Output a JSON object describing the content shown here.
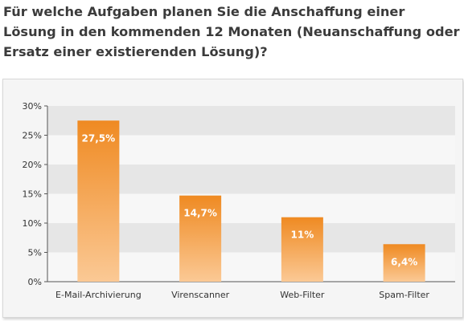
{
  "title": "Für welche Aufgaben planen Sie die Anschaffung einer Lösung in den kommenden 12 Monaten (Neuanschaffung oder Ersatz einer existierenden Lösung)?",
  "colors": {
    "bar_top": "#ef8a22",
    "bar_bottom": "#fbc995",
    "band": "#e6e6e6",
    "plot_bg": "#f7f7f7",
    "axis": "#555555"
  },
  "chart_data": {
    "type": "bar",
    "title": "Für welche Aufgaben planen Sie die Anschaffung einer Lösung in den kommenden 12 Monaten (Neuanschaffung oder Ersatz einer existierenden Lösung)?",
    "categories": [
      "E-Mail-Archivierung",
      "Virenscanner",
      "Web-Filter",
      "Spam-Filter"
    ],
    "values": [
      27.5,
      14.7,
      11,
      6.4
    ],
    "data_labels": [
      "27,5%",
      "14,7%",
      "11%",
      "6,4%"
    ],
    "yticks": [
      "0%",
      "5%",
      "10%",
      "15%",
      "20%",
      "25%",
      "30%"
    ],
    "ylim": [
      0,
      30
    ],
    "xlabel": "",
    "ylabel": "",
    "grid": "alternating horizontal bands",
    "legend": "none"
  }
}
